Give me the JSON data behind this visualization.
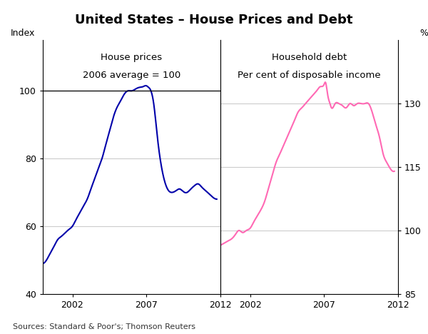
{
  "title": "United States – House Prices and Debt",
  "title_fontsize": 13,
  "left_panel_title1": "House prices",
  "left_panel_title2": "2006 average = 100",
  "right_panel_title1": "Household debt",
  "right_panel_title2": "Per cent of disposable income",
  "left_ylabel": "Index",
  "right_ylabel": "%",
  "source_text": "Sources: Standard & Poor's; Thomson Reuters",
  "left_ylim": [
    40,
    115
  ],
  "right_ylim": [
    85,
    145
  ],
  "left_yticks": [
    40,
    60,
    80,
    100
  ],
  "right_yticks": [
    85,
    100,
    115,
    130
  ],
  "left_color": "#0000AA",
  "right_color": "#FF69B4",
  "background_color": "#FFFFFF",
  "grid_color": "#CCCCCC",
  "hp_x": [
    2000.0,
    2000.25,
    2000.5,
    2000.75,
    2001.0,
    2001.25,
    2001.5,
    2001.75,
    2002.0,
    2002.25,
    2002.5,
    2002.75,
    2003.0,
    2003.25,
    2003.5,
    2003.75,
    2004.0,
    2004.25,
    2004.5,
    2004.75,
    2005.0,
    2005.25,
    2005.5,
    2005.75,
    2006.0,
    2006.25,
    2006.5,
    2006.75,
    2007.0,
    2007.1,
    2007.25,
    2007.5,
    2007.75,
    2008.0,
    2008.25,
    2008.5,
    2008.75,
    2009.0,
    2009.25,
    2009.5,
    2009.75,
    2010.0,
    2010.25,
    2010.5,
    2010.75,
    2011.0,
    2011.25,
    2011.5,
    2011.75
  ],
  "hp_y": [
    49,
    50,
    52,
    54,
    56,
    57,
    58,
    59,
    60,
    62,
    64,
    66,
    68,
    71,
    74,
    77,
    80,
    84,
    88,
    92,
    95,
    97,
    99,
    100,
    100,
    100.5,
    101,
    101.2,
    101.5,
    101.2,
    100.5,
    96,
    86,
    78,
    73,
    70.5,
    70,
    70.5,
    71,
    70.2,
    70,
    71,
    72,
    72.5,
    71.5,
    70.5,
    69.5,
    68.5,
    68
  ],
  "hd_x": [
    2000.0,
    2000.25,
    2000.5,
    2000.75,
    2001.0,
    2001.25,
    2001.5,
    2001.75,
    2002.0,
    2002.25,
    2002.5,
    2002.75,
    2003.0,
    2003.25,
    2003.5,
    2003.75,
    2004.0,
    2004.25,
    2004.5,
    2004.75,
    2005.0,
    2005.25,
    2005.5,
    2005.75,
    2006.0,
    2006.25,
    2006.5,
    2006.75,
    2007.0,
    2007.1,
    2007.25,
    2007.4,
    2007.5,
    2007.75,
    2008.0,
    2008.25,
    2008.5,
    2008.75,
    2009.0,
    2009.25,
    2009.5,
    2009.75,
    2010.0,
    2010.25,
    2010.5,
    2010.75,
    2011.0,
    2011.25,
    2011.5,
    2011.75
  ],
  "hd_y": [
    96.5,
    97,
    97.5,
    98,
    99,
    100,
    99.5,
    100,
    100.5,
    102,
    103.5,
    105,
    107,
    110,
    113,
    116,
    118,
    120,
    122,
    124,
    126,
    128,
    129,
    130,
    131,
    132,
    133,
    134,
    134.5,
    135,
    132,
    130,
    129,
    130,
    130,
    129.5,
    129,
    130,
    129.5,
    130,
    130,
    130,
    130,
    128,
    125,
    122,
    118,
    116,
    114.5,
    114
  ]
}
